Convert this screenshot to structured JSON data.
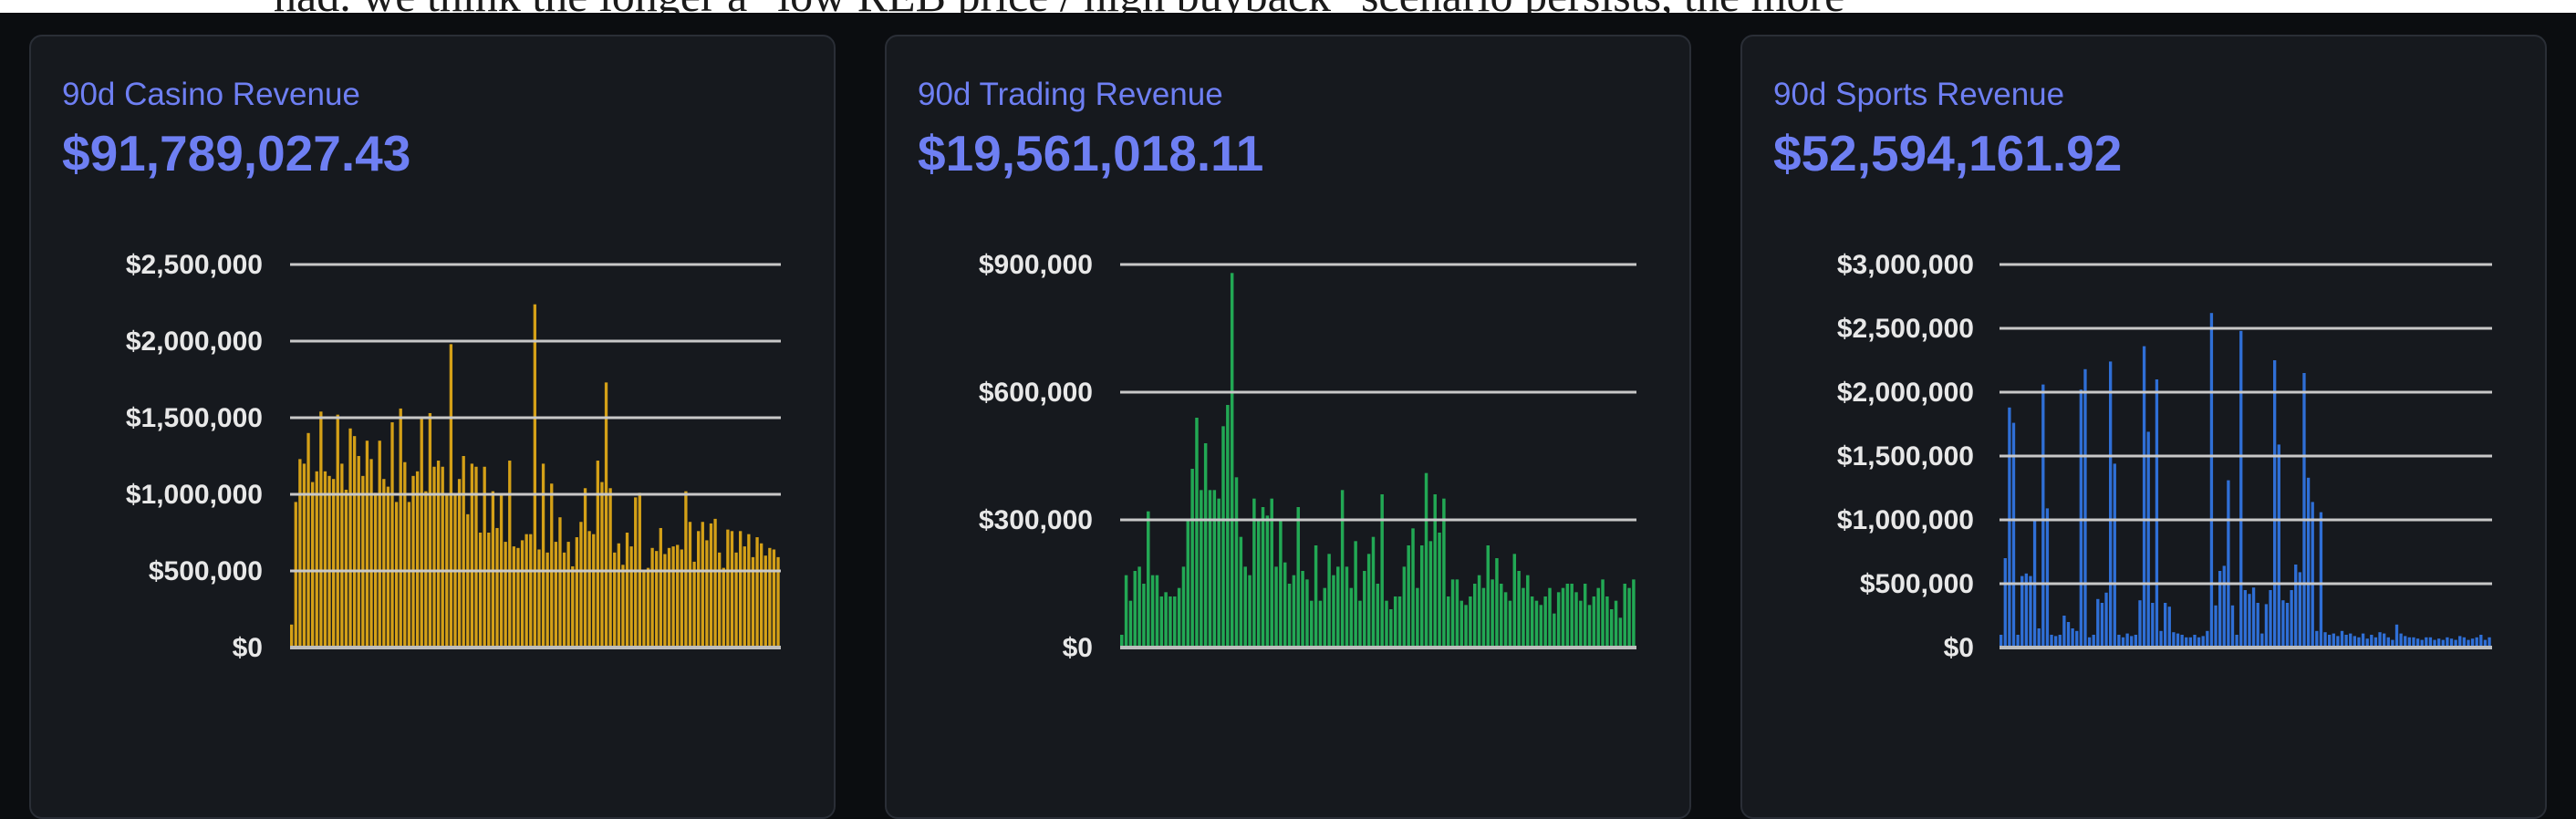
{
  "background_text": "had. we think the longer a \"low REB price / high buyback\" scenario persists, the more",
  "cards": [
    {
      "title": "90d Casino Revenue",
      "value": "$91,789,027.43"
    },
    {
      "title": "90d Trading Revenue",
      "value": "$19,561,018.11"
    },
    {
      "title": "90d Sports Revenue",
      "value": "$52,594,161.92"
    }
  ],
  "chart_data": [
    {
      "type": "bar",
      "color": "#d4a017",
      "ylim": [
        0,
        2500000
      ],
      "yticks": [
        0,
        500000,
        1000000,
        1500000,
        2000000,
        2500000
      ],
      "ytick_labels": [
        "$0",
        "$500,000",
        "$1,000,000",
        "$1,500,000",
        "$2,000,000",
        "$2,500,000"
      ],
      "values": [
        150000,
        950000,
        1230000,
        1200000,
        1400000,
        1080000,
        1150000,
        1540000,
        1150000,
        1120000,
        1100000,
        1520000,
        1200000,
        1030000,
        1430000,
        1380000,
        1250000,
        1120000,
        1350000,
        1230000,
        1010000,
        1350000,
        1100000,
        1050000,
        1470000,
        950000,
        1560000,
        1210000,
        950000,
        1120000,
        1150000,
        1500000,
        1020000,
        1530000,
        1180000,
        1220000,
        1180000,
        1000000,
        1980000,
        1000000,
        1100000,
        1250000,
        870000,
        1200000,
        1180000,
        750000,
        1180000,
        750000,
        1020000,
        780000,
        1000000,
        690000,
        1220000,
        660000,
        650000,
        700000,
        740000,
        740000,
        2240000,
        640000,
        1200000,
        620000,
        1070000,
        690000,
        850000,
        620000,
        690000,
        530000,
        720000,
        820000,
        1040000,
        760000,
        740000,
        1220000,
        1080000,
        1730000,
        1040000,
        620000,
        680000,
        540000,
        750000,
        660000,
        980000,
        1010000,
        500000,
        520000,
        650000,
        630000,
        780000,
        610000,
        650000,
        660000,
        670000,
        640000,
        1020000,
        820000,
        560000,
        760000,
        820000,
        700000,
        810000,
        840000,
        620000,
        520000,
        770000,
        760000,
        620000,
        760000,
        660000,
        740000,
        590000,
        720000,
        680000,
        600000,
        650000,
        640000,
        590000
      ]
    },
    {
      "type": "bar",
      "color": "#22a854",
      "ylim": [
        0,
        900000
      ],
      "yticks": [
        0,
        300000,
        600000,
        900000
      ],
      "ytick_labels": [
        "$0",
        "$300,000",
        "$600,000",
        "$900,000"
      ],
      "values": [
        30000,
        170000,
        110000,
        180000,
        190000,
        150000,
        320000,
        170000,
        170000,
        120000,
        130000,
        120000,
        120000,
        140000,
        190000,
        300000,
        420000,
        540000,
        370000,
        480000,
        370000,
        370000,
        350000,
        520000,
        570000,
        880000,
        400000,
        260000,
        190000,
        170000,
        350000,
        300000,
        330000,
        310000,
        350000,
        190000,
        300000,
        200000,
        150000,
        170000,
        330000,
        180000,
        160000,
        110000,
        240000,
        110000,
        140000,
        220000,
        170000,
        190000,
        370000,
        190000,
        140000,
        250000,
        110000,
        180000,
        220000,
        260000,
        150000,
        360000,
        110000,
        90000,
        120000,
        120000,
        190000,
        240000,
        280000,
        140000,
        240000,
        410000,
        250000,
        360000,
        270000,
        350000,
        120000,
        160000,
        160000,
        110000,
        100000,
        120000,
        150000,
        170000,
        140000,
        240000,
        160000,
        210000,
        150000,
        130000,
        110000,
        220000,
        180000,
        140000,
        170000,
        120000,
        110000,
        100000,
        120000,
        140000,
        80000,
        130000,
        140000,
        150000,
        150000,
        130000,
        110000,
        150000,
        100000,
        120000,
        140000,
        160000,
        120000,
        90000,
        110000,
        70000,
        150000,
        140000,
        160000
      ]
    },
    {
      "type": "bar",
      "color": "#2f6fd6",
      "ylim": [
        0,
        3000000
      ],
      "yticks": [
        0,
        500000,
        1000000,
        1500000,
        2000000,
        2500000,
        3000000
      ],
      "ytick_labels": [
        "$0",
        "$500,000",
        "$1,000,000",
        "$1,500,000",
        "$2,000,000",
        "$2,500,000",
        "$3,000,000"
      ],
      "values": [
        100000,
        700000,
        1880000,
        1760000,
        100000,
        560000,
        580000,
        560000,
        1000000,
        150000,
        2060000,
        1090000,
        100000,
        90000,
        100000,
        250000,
        200000,
        150000,
        130000,
        2020000,
        2180000,
        80000,
        100000,
        380000,
        350000,
        430000,
        2240000,
        1440000,
        100000,
        80000,
        110000,
        90000,
        100000,
        370000,
        2360000,
        1690000,
        350000,
        2100000,
        130000,
        350000,
        320000,
        120000,
        110000,
        100000,
        80000,
        80000,
        100000,
        80000,
        90000,
        130000,
        2620000,
        330000,
        600000,
        640000,
        1310000,
        330000,
        100000,
        2480000,
        450000,
        420000,
        470000,
        350000,
        110000,
        340000,
        450000,
        2250000,
        1590000,
        370000,
        350000,
        450000,
        650000,
        590000,
        2150000,
        1330000,
        1140000,
        130000,
        1060000,
        120000,
        100000,
        110000,
        90000,
        130000,
        100000,
        110000,
        90000,
        80000,
        110000,
        70000,
        100000,
        80000,
        120000,
        110000,
        80000,
        60000,
        180000,
        110000,
        90000,
        80000,
        80000,
        70000,
        60000,
        80000,
        80000,
        60000,
        70000,
        60000,
        80000,
        70000,
        60000,
        90000,
        80000,
        60000,
        70000,
        80000,
        100000,
        60000,
        80000
      ]
    }
  ]
}
